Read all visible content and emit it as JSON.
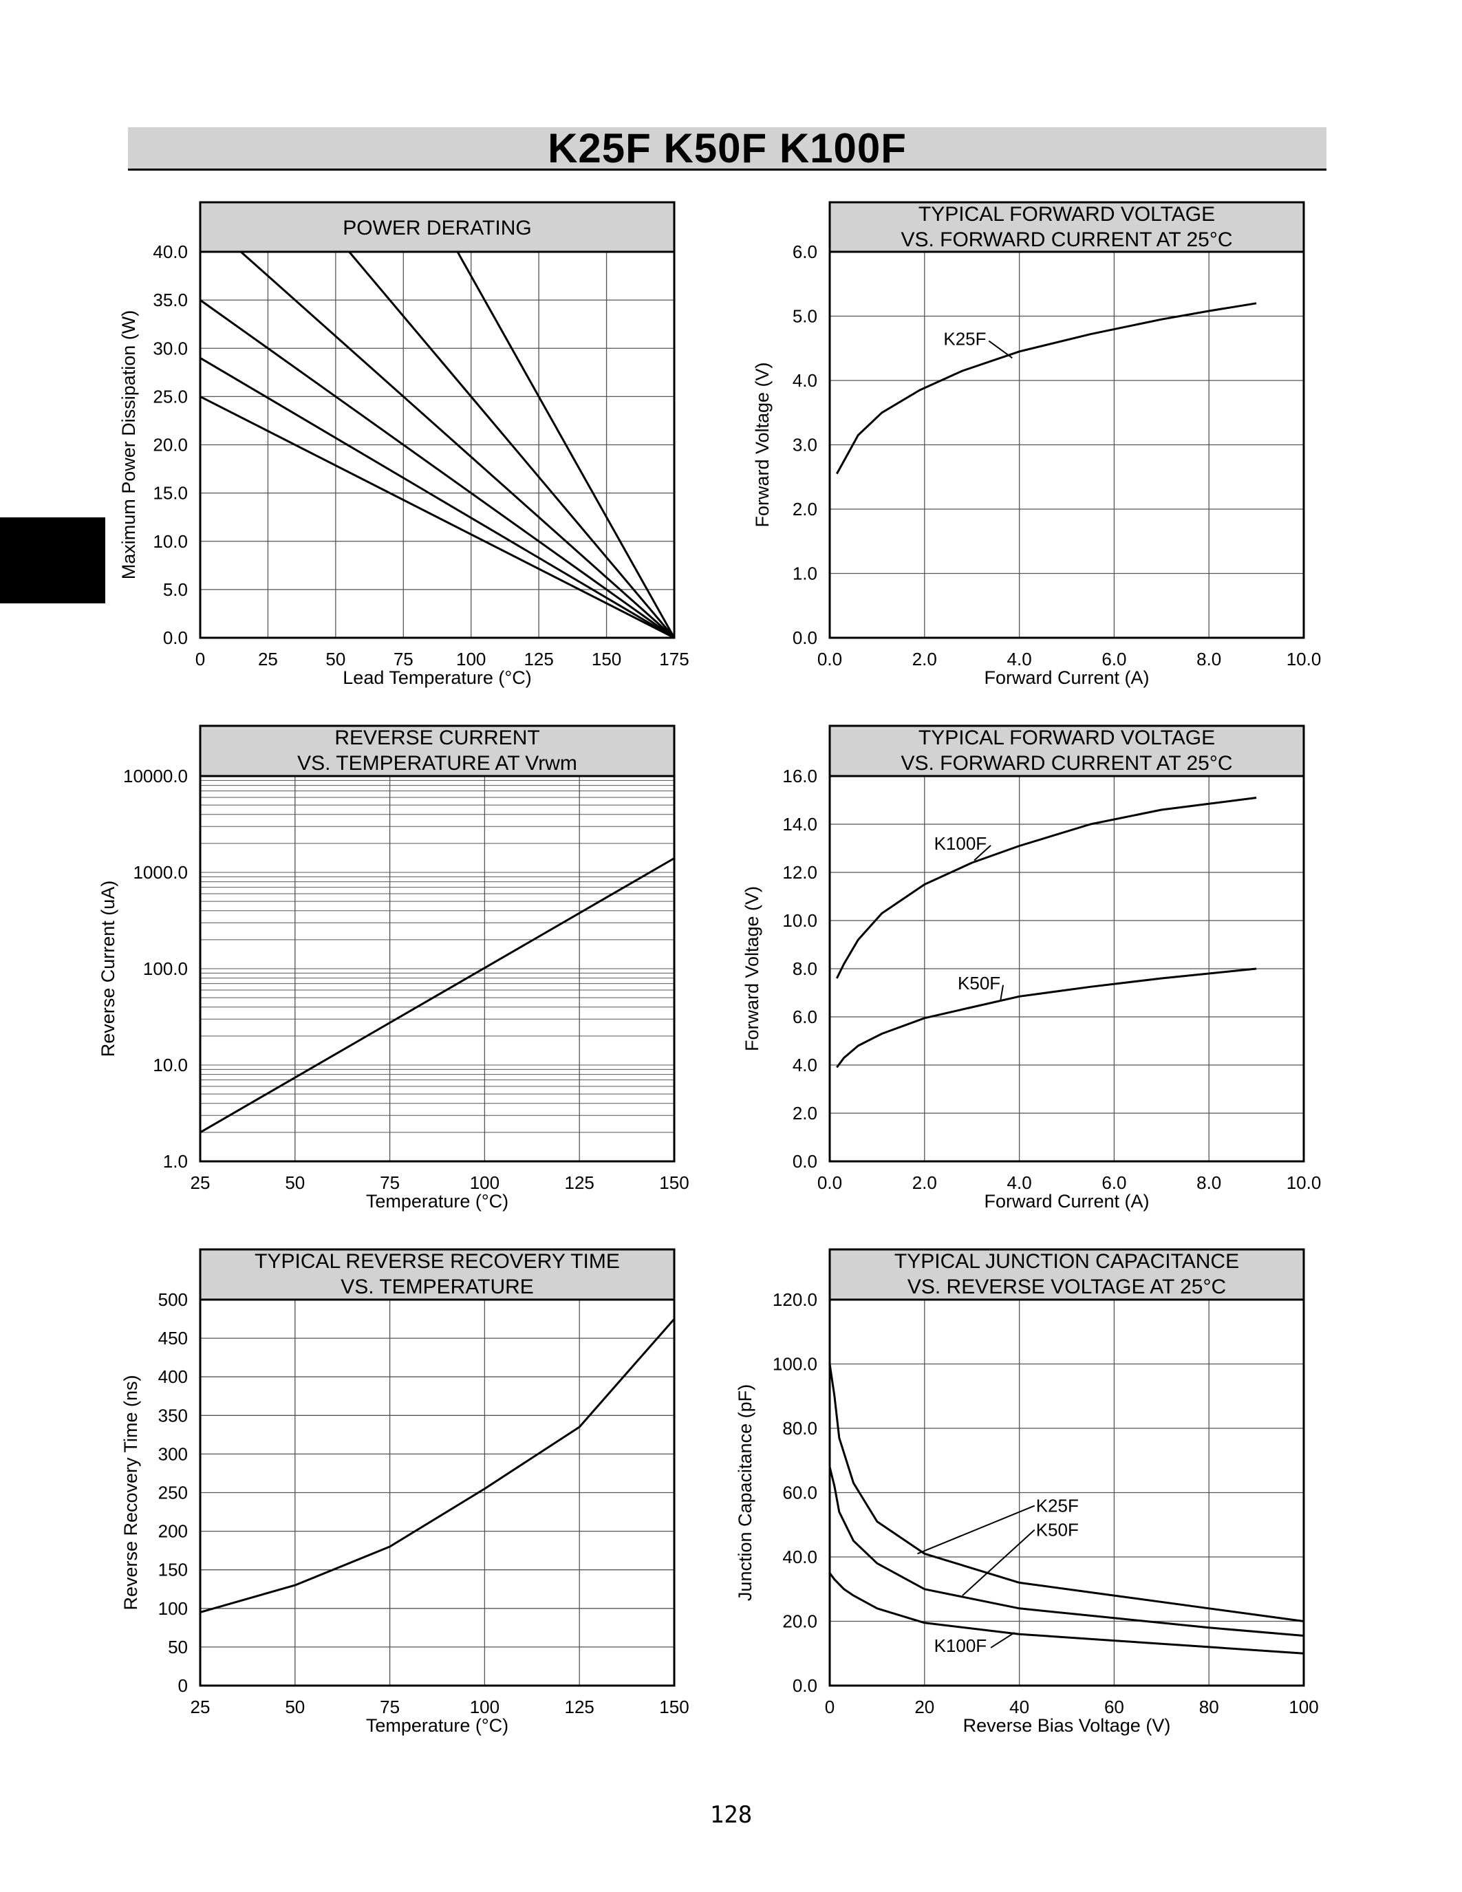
{
  "header": {
    "title": "K25F  K50F  K100F"
  },
  "footer": {
    "page_number": "128"
  },
  "colors": {
    "title_fill": "#d2d2d2",
    "line": "#000000",
    "grid": "#555555"
  },
  "chart_data": [
    {
      "id": "power-derating",
      "type": "line",
      "title_lines": [
        "POWER DERATING"
      ],
      "xlabel": "Lead Temperature (°C)",
      "ylabel": "Maximum Power Dissipation (W)",
      "xlim": [
        0,
        175
      ],
      "ylim": [
        0,
        40
      ],
      "xticks": [
        0,
        25,
        50,
        75,
        100,
        125,
        150,
        175
      ],
      "xtick_labels": [
        "0",
        "25",
        "50",
        "75",
        "100",
        "125",
        "150",
        "175"
      ],
      "yticks": [
        0,
        5,
        10,
        15,
        20,
        25,
        30,
        35,
        40
      ],
      "ytick_labels": [
        "0.0",
        "5.0",
        "10.0",
        "15.0",
        "20.0",
        "25.0",
        "30.0",
        "35.0",
        "40.0"
      ],
      "grid": true,
      "series": [
        {
          "x": [
            0,
            175
          ],
          "y": [
            25,
            0
          ]
        },
        {
          "x": [
            0,
            175
          ],
          "y": [
            29,
            0
          ]
        },
        {
          "x": [
            0,
            175
          ],
          "y": [
            35,
            0
          ]
        },
        {
          "x": [
            15,
            175
          ],
          "y": [
            40,
            0
          ]
        },
        {
          "x": [
            55,
            175
          ],
          "y": [
            40,
            0
          ]
        },
        {
          "x": [
            95,
            175
          ],
          "y": [
            40,
            0
          ]
        }
      ],
      "annotations": []
    },
    {
      "id": "forward-voltage-k25f",
      "type": "line",
      "title_lines": [
        "TYPICAL FORWARD VOLTAGE",
        "VS. FORWARD CURRENT AT 25°C"
      ],
      "xlabel": "Forward Current (A)",
      "ylabel": "Forward Voltage (V)",
      "xlim": [
        0,
        10
      ],
      "ylim": [
        0,
        6
      ],
      "xticks": [
        0,
        2,
        4,
        6,
        8,
        10
      ],
      "xtick_labels": [
        "0.0",
        "2.0",
        "4.0",
        "6.0",
        "8.0",
        "10.0"
      ],
      "yticks": [
        0,
        1,
        2,
        3,
        4,
        5,
        6
      ],
      "ytick_labels": [
        "0.0",
        "1.0",
        "2.0",
        "3.0",
        "4.0",
        "5.0",
        "6.0"
      ],
      "grid": true,
      "series": [
        {
          "x": [
            0.15,
            0.3,
            0.6,
            1.1,
            1.9,
            2.8,
            4.0,
            5.5,
            7.0,
            8.0,
            9.0
          ],
          "y": [
            2.55,
            2.75,
            3.15,
            3.5,
            3.85,
            4.15,
            4.45,
            4.72,
            4.95,
            5.08,
            5.2
          ]
        }
      ],
      "annotations": [
        {
          "text": "K25F",
          "tx": 2.4,
          "ty": 4.55,
          "x": 3.85,
          "y": 4.35
        }
      ]
    },
    {
      "id": "reverse-current",
      "type": "line",
      "scale": "log-y",
      "title_lines": [
        "REVERSE CURRENT",
        "VS. TEMPERATURE AT Vrwm"
      ],
      "xlabel": "Temperature (°C)",
      "ylabel": "Reverse Current (uA)",
      "xlim": [
        25,
        150
      ],
      "ylim": [
        1,
        10000
      ],
      "xticks": [
        25,
        50,
        75,
        100,
        125,
        150
      ],
      "xtick_labels": [
        "25",
        "50",
        "75",
        "100",
        "125",
        "150"
      ],
      "yticks": [
        1,
        10,
        100,
        1000,
        10000
      ],
      "ytick_labels": [
        "1.0",
        "10.0",
        "100.0",
        "1000.0",
        "10000.0"
      ],
      "grid": true,
      "series": [
        {
          "x": [
            25,
            150
          ],
          "y": [
            2,
            1400
          ]
        }
      ],
      "annotations": []
    },
    {
      "id": "forward-voltage-k50f-k100f",
      "type": "line",
      "title_lines": [
        "TYPICAL FORWARD VOLTAGE",
        "VS. FORWARD CURRENT AT 25°C"
      ],
      "xlabel": "Forward Current (A)",
      "ylabel": "Forward Voltage (V)",
      "xlim": [
        0,
        10
      ],
      "ylim": [
        0,
        16
      ],
      "xticks": [
        0,
        2,
        4,
        6,
        8,
        10
      ],
      "xtick_labels": [
        "0.0",
        "2.0",
        "4.0",
        "6.0",
        "8.0",
        "10.0"
      ],
      "yticks": [
        0,
        2,
        4,
        6,
        8,
        10,
        12,
        14,
        16
      ],
      "ytick_labels": [
        "0.0",
        "2.0",
        "4.0",
        "6.0",
        "8.0",
        "10.0",
        "12.0",
        "14.0",
        "16.0"
      ],
      "grid": true,
      "series": [
        {
          "x": [
            0.15,
            0.3,
            0.6,
            1.1,
            2.0,
            3.0,
            4.0,
            5.5,
            7.0,
            8.0,
            9.0
          ],
          "y": [
            7.6,
            8.2,
            9.2,
            10.3,
            11.5,
            12.4,
            13.1,
            14.0,
            14.6,
            14.85,
            15.1
          ]
        },
        {
          "x": [
            0.15,
            0.3,
            0.6,
            1.1,
            2.0,
            3.0,
            4.0,
            5.5,
            7.0,
            8.0,
            9.0
          ],
          "y": [
            3.9,
            4.3,
            4.8,
            5.3,
            5.95,
            6.4,
            6.85,
            7.25,
            7.6,
            7.8,
            8.0
          ]
        }
      ],
      "annotations": [
        {
          "text": "K100F",
          "tx": 2.2,
          "ty": 12.95,
          "x": 3.05,
          "y": 12.5
        },
        {
          "text": "K50F",
          "tx": 2.7,
          "ty": 7.15,
          "x": 3.6,
          "y": 6.65
        }
      ]
    },
    {
      "id": "reverse-recovery-time",
      "type": "line",
      "title_lines": [
        "TYPICAL REVERSE RECOVERY TIME",
        "VS. TEMPERATURE"
      ],
      "xlabel": "Temperature (°C)",
      "ylabel": "Reverse Recovery Time (ns)",
      "xlim": [
        25,
        150
      ],
      "ylim": [
        0,
        500
      ],
      "xticks": [
        25,
        50,
        75,
        100,
        125,
        150
      ],
      "xtick_labels": [
        "25",
        "50",
        "75",
        "100",
        "125",
        "150"
      ],
      "yticks": [
        0,
        50,
        100,
        150,
        200,
        250,
        300,
        350,
        400,
        450,
        500
      ],
      "ytick_labels": [
        "0",
        "50",
        "100",
        "150",
        "200",
        "250",
        "300",
        "350",
        "400",
        "450",
        "500"
      ],
      "grid": true,
      "series": [
        {
          "x": [
            25,
            50,
            75,
            100,
            125,
            150
          ],
          "y": [
            95,
            130,
            180,
            255,
            335,
            475
          ]
        }
      ],
      "annotations": []
    },
    {
      "id": "junction-capacitance",
      "type": "line",
      "title_lines": [
        "TYPICAL JUNCTION CAPACITANCE",
        "VS. REVERSE VOLTAGE AT 25°C"
      ],
      "xlabel": "Reverse Bias Voltage (V)",
      "ylabel": "Junction Capacitance (pF)",
      "xlim": [
        0,
        100
      ],
      "ylim": [
        0,
        120
      ],
      "xticks": [
        0,
        20,
        40,
        60,
        80,
        100
      ],
      "xtick_labels": [
        "0",
        "20",
        "40",
        "60",
        "80",
        "100"
      ],
      "yticks": [
        0,
        20,
        40,
        60,
        80,
        100,
        120
      ],
      "ytick_labels": [
        "0.0",
        "20.0",
        "40.0",
        "60.0",
        "80.0",
        "100.0",
        "120.0"
      ],
      "grid": true,
      "series": [
        {
          "x": [
            0,
            1,
            2,
            5,
            10,
            20,
            40,
            60,
            80,
            100
          ],
          "y": [
            100,
            90,
            77,
            63,
            51,
            41,
            32,
            28,
            24,
            20
          ]
        },
        {
          "x": [
            0,
            1,
            2,
            5,
            10,
            20,
            40,
            60,
            80,
            100
          ],
          "y": [
            68,
            62,
            54,
            45,
            38,
            30,
            24,
            21,
            18,
            15.5
          ]
        },
        {
          "x": [
            0,
            1,
            3,
            5,
            10,
            20,
            40,
            60,
            80,
            100
          ],
          "y": [
            35,
            33,
            30,
            28,
            24,
            19.5,
            16,
            14,
            12,
            10
          ]
        }
      ],
      "annotations": [
        {
          "text": "K25F",
          "tx": 43.5,
          "ty": 54,
          "x": 18.5,
          "y": 41
        },
        {
          "text": "K50F",
          "tx": 43.5,
          "ty": 46.5,
          "x": 28,
          "y": 28
        },
        {
          "text": "K100F",
          "tx": 22,
          "ty": 10.5,
          "x": 39,
          "y": 16.5
        }
      ]
    }
  ]
}
